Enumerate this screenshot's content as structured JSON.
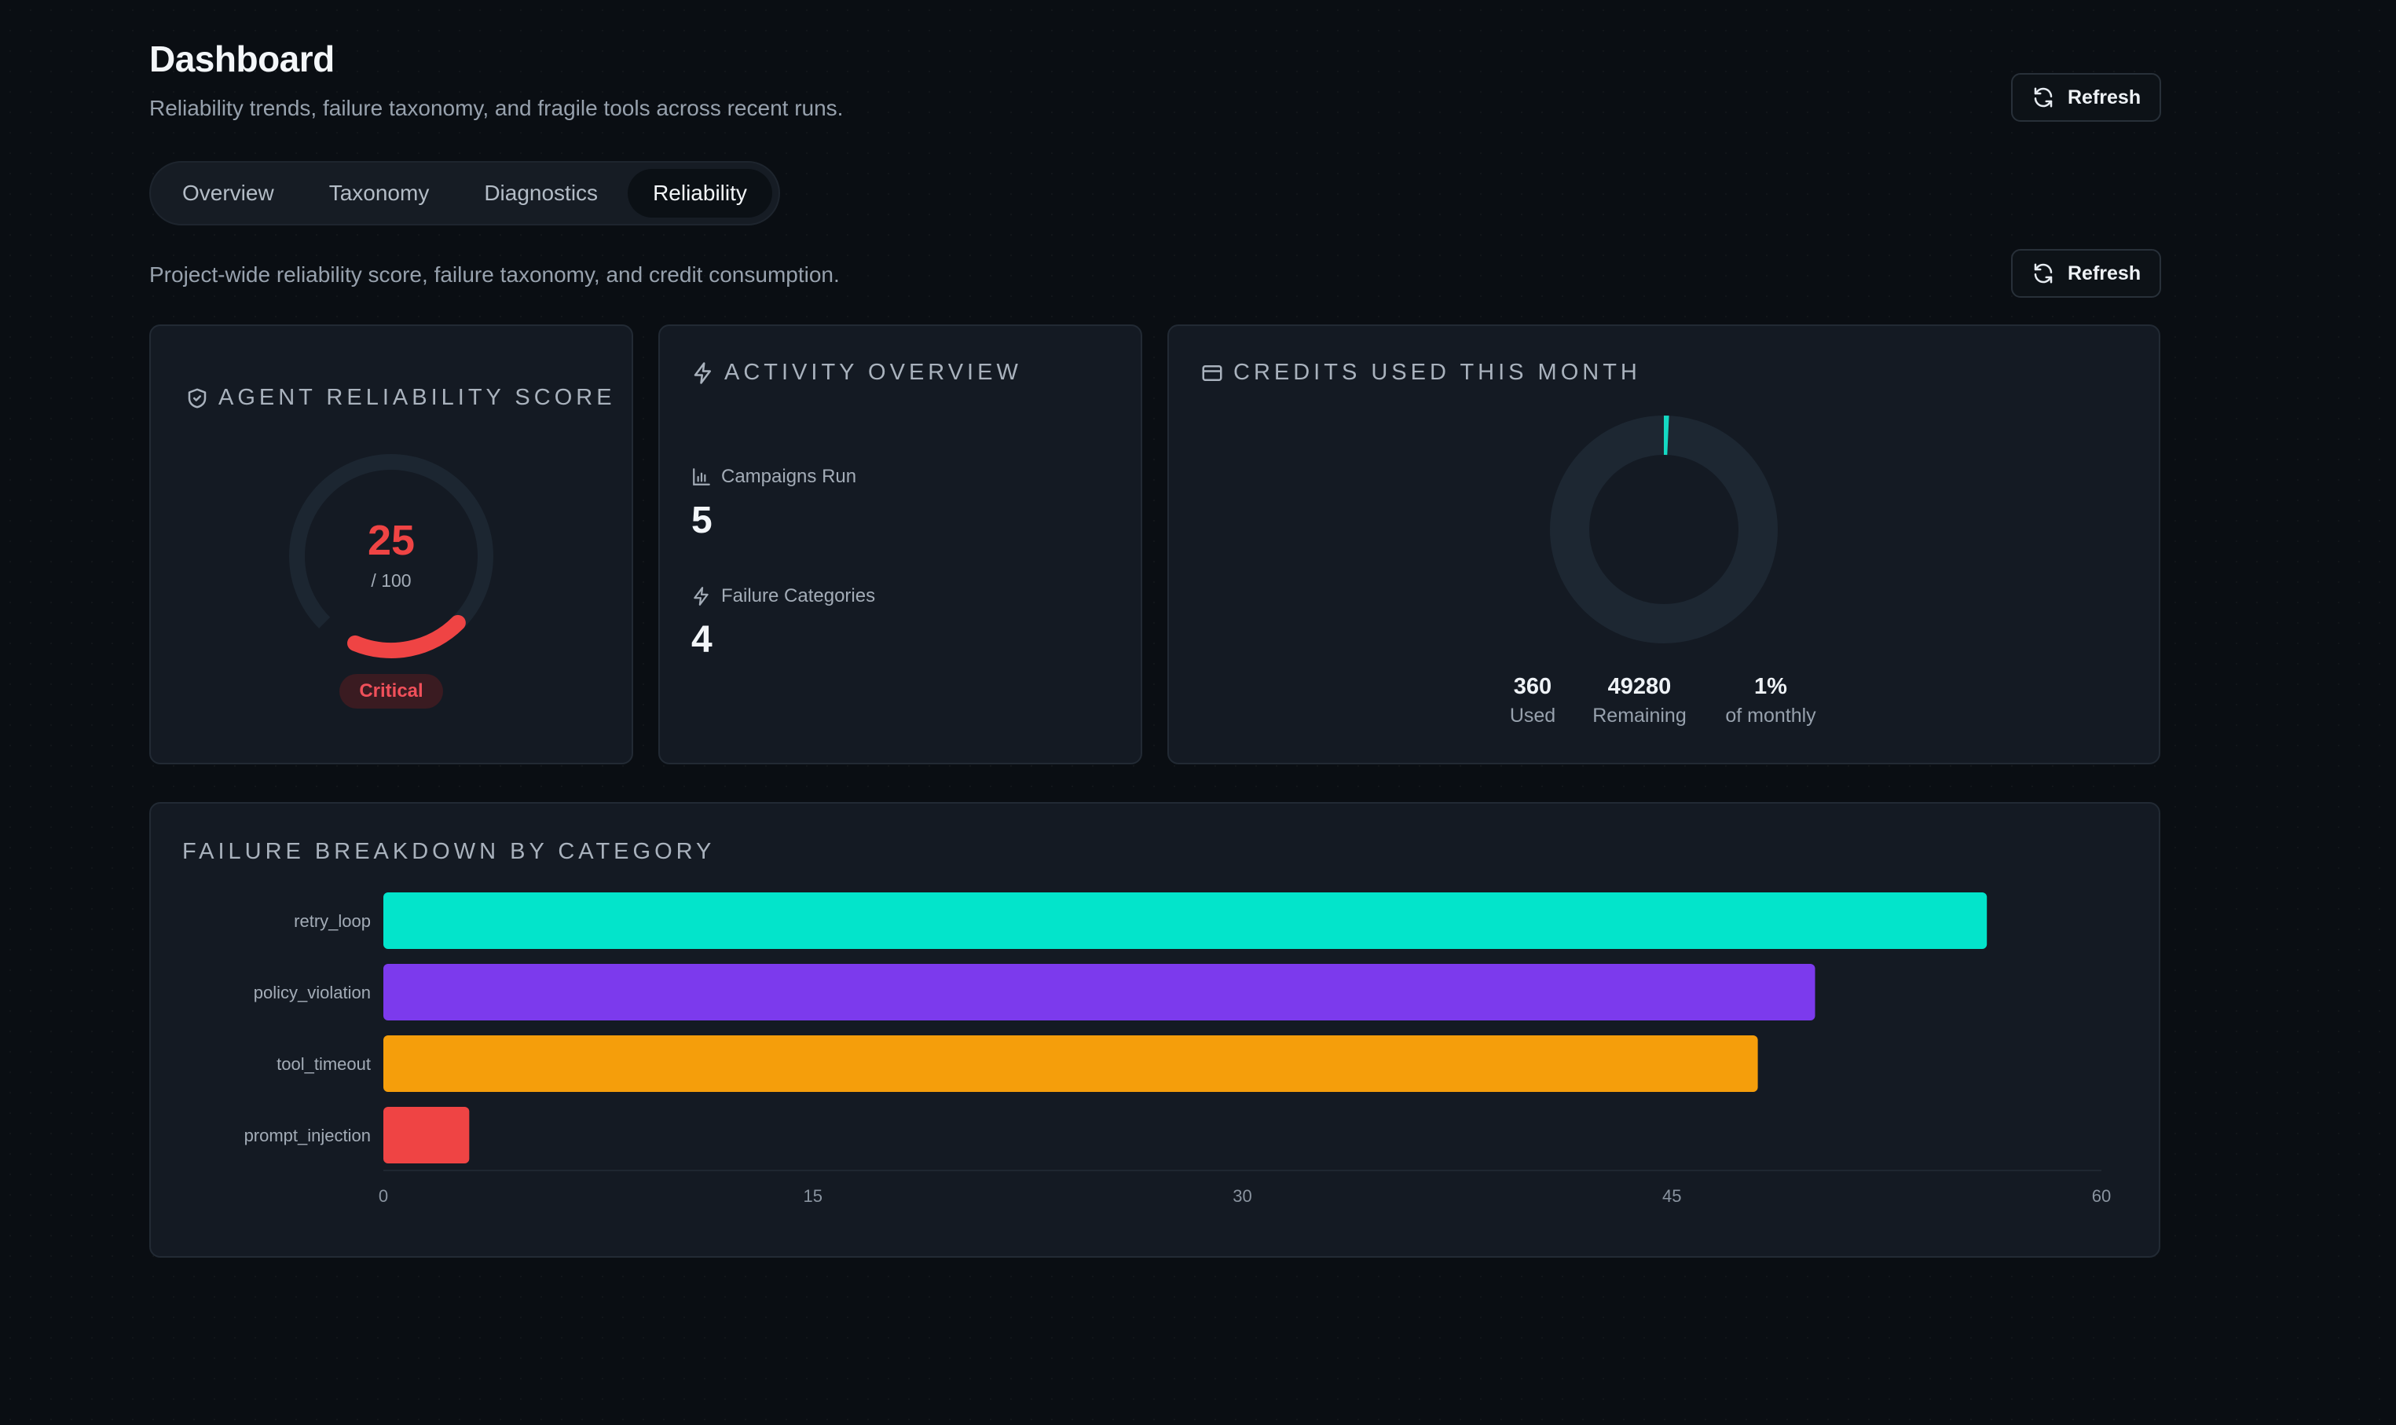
{
  "header": {
    "title": "Dashboard",
    "subtitle": "Reliability trends, failure taxonomy, and fragile tools across recent runs.",
    "refresh_label": "Refresh"
  },
  "tabs": [
    {
      "label": "Overview",
      "active": false
    },
    {
      "label": "Taxonomy",
      "active": false
    },
    {
      "label": "Diagnostics",
      "active": false
    },
    {
      "label": "Reliability",
      "active": true
    }
  ],
  "section": {
    "description": "Project-wide reliability score, failure taxonomy, and credit consumption.",
    "refresh_label": "Refresh"
  },
  "reliability": {
    "title": "AGENT RELIABILITY SCORE",
    "icon": "shield-icon",
    "score": "25",
    "max": "/ 100",
    "score_fraction": 0.25,
    "status": "Critical",
    "color": "#ef4444"
  },
  "activity": {
    "title": "ACTIVITY OVERVIEW",
    "icon": "lightning-icon",
    "campaigns_label": "Campaigns Run",
    "campaigns_value": "5",
    "failures_label": "Failure Categories",
    "failures_value": "4"
  },
  "credits": {
    "title": "CREDITS USED THIS MONTH",
    "icon": "credit-card-icon",
    "used": "360",
    "used_label": "Used",
    "remaining": "49280",
    "remaining_label": "Remaining",
    "percent": "1%",
    "percent_label": "of monthly",
    "used_fraction": 0.0073,
    "accent": "#14d9c3"
  },
  "breakdown": {
    "title": "FAILURE BREAKDOWN BY CATEGORY"
  },
  "chart_data": {
    "type": "bar",
    "orientation": "horizontal",
    "categories": [
      "retry_loop",
      "policy_violation",
      "tool_timeout",
      "prompt_injection"
    ],
    "values": [
      56,
      50,
      48,
      3
    ],
    "colors": [
      "#03e4cb",
      "#7c3aed",
      "#f59e0b",
      "#ef4444"
    ],
    "xticks": [
      "0",
      "15",
      "30",
      "45",
      "60"
    ],
    "xlim": [
      0,
      60
    ],
    "grid": false
  }
}
